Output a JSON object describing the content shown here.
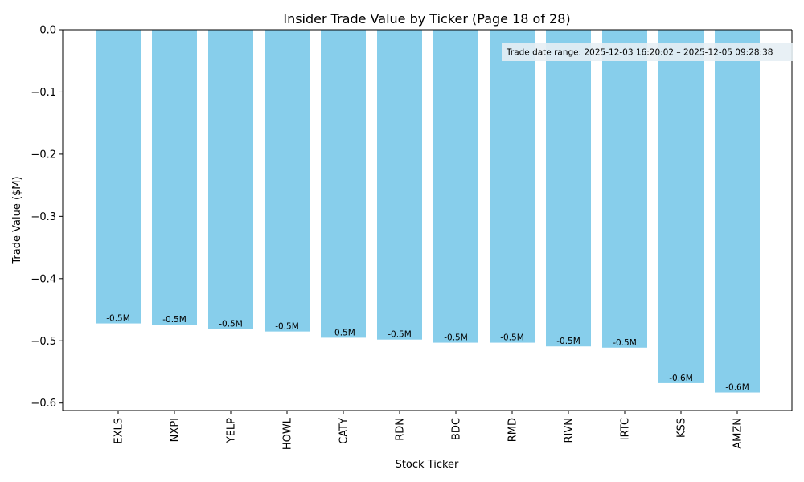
{
  "colors": {
    "bar": "#87ceeb",
    "axis": "#000000",
    "annotation_box": "#e6eef4"
  },
  "chart_data": {
    "type": "bar",
    "title": "Insider Trade Value by Ticker (Page 18 of 28)",
    "xlabel": "Stock Ticker",
    "ylabel": "Trade Value ($M)",
    "ylim": [
      -0.612,
      0.0
    ],
    "yticks": [
      0.0,
      -0.1,
      -0.2,
      -0.3,
      -0.4,
      -0.5,
      -0.6
    ],
    "ytick_labels": [
      "0.0",
      "−0.1",
      "−0.2",
      "−0.3",
      "−0.4",
      "−0.5",
      "−0.6"
    ],
    "categories": [
      "EXLS",
      "NXPI",
      "YELP",
      "HOWL",
      "CATY",
      "RDN",
      "BDC",
      "RMD",
      "RIVN",
      "IRTC",
      "KSS",
      "AMZN"
    ],
    "values": [
      -0.472,
      -0.474,
      -0.481,
      -0.485,
      -0.495,
      -0.498,
      -0.503,
      -0.503,
      -0.509,
      -0.511,
      -0.568,
      -0.583
    ],
    "data_labels": [
      "-0.5M",
      "-0.5M",
      "-0.5M",
      "-0.5M",
      "-0.5M",
      "-0.5M",
      "-0.5M",
      "-0.5M",
      "-0.5M",
      "-0.5M",
      "-0.6M",
      "-0.6M"
    ],
    "annotation": "Trade date range: 2025-12-03 16:20:02 – 2025-12-05 09:28:38",
    "grid": false,
    "legend": "none"
  }
}
